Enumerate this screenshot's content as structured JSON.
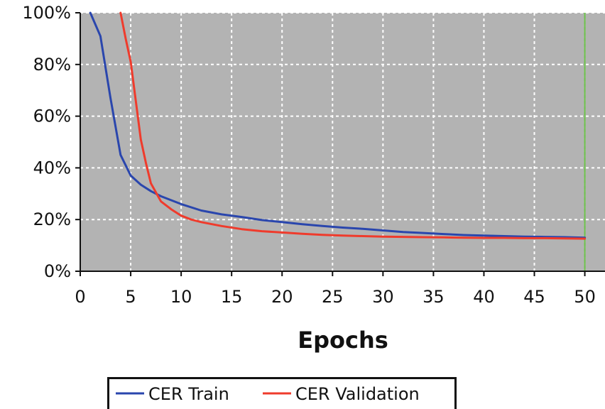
{
  "chart_data": {
    "type": "line",
    "xlabel": "Epochs",
    "ylabel": "",
    "x_ticks": [
      0,
      5,
      10,
      15,
      20,
      25,
      30,
      35,
      40,
      45,
      50
    ],
    "y_ticks": [
      0,
      20,
      40,
      60,
      80,
      100
    ],
    "y_tick_labels": [
      "0%",
      "20%",
      "40%",
      "60%",
      "80%",
      "100%"
    ],
    "xlim": [
      0,
      52
    ],
    "ylim": [
      0,
      100
    ],
    "grid": true,
    "legend_placement": "bottom",
    "marker_line_x": 50,
    "colors": {
      "plot_background": "#b3b3b3",
      "grid": "#ffffff",
      "axis": "#111111",
      "marker_line": "#6cc24a"
    },
    "series": [
      {
        "name": "CER Train",
        "color": "#2a46ad",
        "x": [
          1,
          2,
          3,
          4,
          5,
          6,
          7,
          8,
          9,
          10,
          12,
          14,
          16,
          18,
          20,
          22,
          24,
          26,
          28,
          30,
          32,
          34,
          36,
          38,
          40,
          42,
          44,
          46,
          48,
          50
        ],
        "y": [
          100,
          91,
          67,
          45,
          37,
          33.5,
          31,
          29,
          27.5,
          26,
          23.5,
          22,
          21,
          19.8,
          19,
          18.2,
          17.5,
          16.9,
          16.4,
          15.8,
          15.2,
          14.8,
          14.4,
          14,
          13.8,
          13.6,
          13.4,
          13.3,
          13.2,
          13
        ]
      },
      {
        "name": "CER Validation",
        "color": "#ef3b2c",
        "x": [
          4,
          4.5,
          5,
          5.5,
          6,
          6.5,
          7,
          7.5,
          8,
          9,
          10,
          11,
          12,
          14,
          16,
          18,
          20,
          22,
          24,
          26,
          28,
          30,
          32,
          34,
          36,
          38,
          40,
          42,
          44,
          46,
          48,
          50
        ],
        "y": [
          100,
          90,
          81,
          66,
          51,
          42,
          34,
          30.5,
          27,
          24,
          21.5,
          20,
          19,
          17.5,
          16.3,
          15.5,
          15,
          14.5,
          14.1,
          13.8,
          13.6,
          13.4,
          13.3,
          13.2,
          13.1,
          13,
          12.9,
          12.9,
          12.8,
          12.8,
          12.7,
          12.6
        ]
      }
    ]
  }
}
